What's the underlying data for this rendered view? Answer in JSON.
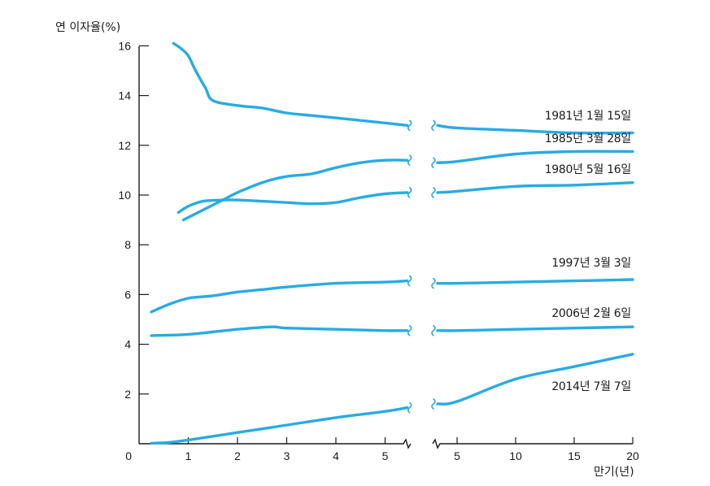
{
  "chart_data": {
    "type": "line",
    "ylabel": "연 이자율(%)",
    "xlabel": "만기(년)",
    "ylim": [
      0,
      16
    ],
    "yticks": [
      0,
      2,
      4,
      6,
      8,
      10,
      12,
      14,
      16
    ],
    "ytick_labels": [
      "0",
      "2",
      "4",
      "6",
      "8",
      "10",
      "12",
      "14",
      "16"
    ],
    "x_left_segment": {
      "range": [
        0,
        5.5
      ],
      "ticks": [
        1,
        2,
        3,
        4,
        5
      ],
      "tick_labels": [
        "1",
        "2",
        "3",
        "4",
        "5"
      ]
    },
    "x_right_segment": {
      "range": [
        3,
        20
      ],
      "ticks": [
        5,
        10,
        15,
        20
      ],
      "tick_labels": [
        "5",
        "10",
        "15",
        "20"
      ]
    },
    "axis_break": true,
    "line_color": "#29abe2",
    "series": [
      {
        "name": "1981년 1월 15일",
        "left": [
          [
            0.7,
            16.1
          ],
          [
            0.85,
            15.9
          ],
          [
            1.0,
            15.6
          ],
          [
            1.15,
            15.0
          ],
          [
            1.35,
            14.3
          ],
          [
            1.5,
            13.8
          ],
          [
            2.0,
            13.6
          ],
          [
            2.5,
            13.5
          ],
          [
            3.0,
            13.3
          ],
          [
            3.5,
            13.2
          ],
          [
            4.0,
            13.1
          ],
          [
            4.5,
            13.0
          ],
          [
            5.0,
            12.9
          ],
          [
            5.45,
            12.8
          ]
        ],
        "right": [
          [
            3.0,
            12.8
          ],
          [
            5.0,
            12.7
          ],
          [
            10.0,
            12.6
          ],
          [
            15.0,
            12.5
          ],
          [
            20.0,
            12.5
          ]
        ]
      },
      {
        "name": "1985년 3월 28일",
        "left": [
          [
            0.9,
            9.0
          ],
          [
            1.3,
            9.4
          ],
          [
            1.7,
            9.8
          ],
          [
            2.0,
            10.1
          ],
          [
            2.5,
            10.5
          ],
          [
            3.0,
            10.75
          ],
          [
            3.5,
            10.85
          ],
          [
            4.0,
            11.1
          ],
          [
            4.5,
            11.3
          ],
          [
            5.0,
            11.4
          ],
          [
            5.45,
            11.4
          ]
        ],
        "right": [
          [
            3.0,
            11.3
          ],
          [
            5.0,
            11.35
          ],
          [
            10.0,
            11.65
          ],
          [
            15.0,
            11.75
          ],
          [
            20.0,
            11.75
          ]
        ]
      },
      {
        "name": "1980년 5월 16일",
        "left": [
          [
            0.8,
            9.3
          ],
          [
            1.0,
            9.55
          ],
          [
            1.3,
            9.75
          ],
          [
            1.7,
            9.8
          ],
          [
            2.0,
            9.8
          ],
          [
            2.5,
            9.75
          ],
          [
            3.0,
            9.7
          ],
          [
            3.5,
            9.65
          ],
          [
            4.0,
            9.7
          ],
          [
            4.5,
            9.9
          ],
          [
            5.0,
            10.05
          ],
          [
            5.45,
            10.1
          ]
        ],
        "right": [
          [
            3.0,
            10.1
          ],
          [
            5.0,
            10.15
          ],
          [
            10.0,
            10.35
          ],
          [
            15.0,
            10.4
          ],
          [
            20.0,
            10.5
          ]
        ]
      },
      {
        "name": "1997년 3월 3일",
        "left": [
          [
            0.25,
            5.3
          ],
          [
            0.6,
            5.6
          ],
          [
            1.0,
            5.85
          ],
          [
            1.5,
            5.95
          ],
          [
            2.0,
            6.1
          ],
          [
            2.5,
            6.2
          ],
          [
            3.0,
            6.3
          ],
          [
            4.0,
            6.45
          ],
          [
            5.0,
            6.5
          ],
          [
            5.45,
            6.55
          ]
        ],
        "right": [
          [
            3.0,
            6.45
          ],
          [
            5.0,
            6.45
          ],
          [
            10.0,
            6.5
          ],
          [
            15.0,
            6.55
          ],
          [
            20.0,
            6.6
          ]
        ]
      },
      {
        "name": "2006년 2월 6일",
        "left": [
          [
            0.25,
            4.35
          ],
          [
            1.0,
            4.4
          ],
          [
            2.0,
            4.6
          ],
          [
            2.7,
            4.7
          ],
          [
            3.0,
            4.65
          ],
          [
            4.0,
            4.6
          ],
          [
            5.0,
            4.55
          ],
          [
            5.45,
            4.55
          ]
        ],
        "right": [
          [
            3.0,
            4.55
          ],
          [
            5.0,
            4.55
          ],
          [
            10.0,
            4.6
          ],
          [
            15.0,
            4.65
          ],
          [
            20.0,
            4.7
          ]
        ]
      },
      {
        "name": "2014년 7월 7일",
        "left": [
          [
            0.25,
            0.02
          ],
          [
            0.6,
            0.05
          ],
          [
            1.0,
            0.15
          ],
          [
            2.0,
            0.45
          ],
          [
            3.0,
            0.75
          ],
          [
            4.0,
            1.05
          ],
          [
            5.0,
            1.3
          ],
          [
            5.45,
            1.45
          ]
        ],
        "right": [
          [
            3.0,
            1.6
          ],
          [
            5.0,
            1.7
          ],
          [
            10.0,
            2.6
          ],
          [
            15.0,
            3.1
          ],
          [
            20.0,
            3.6
          ]
        ]
      }
    ]
  }
}
